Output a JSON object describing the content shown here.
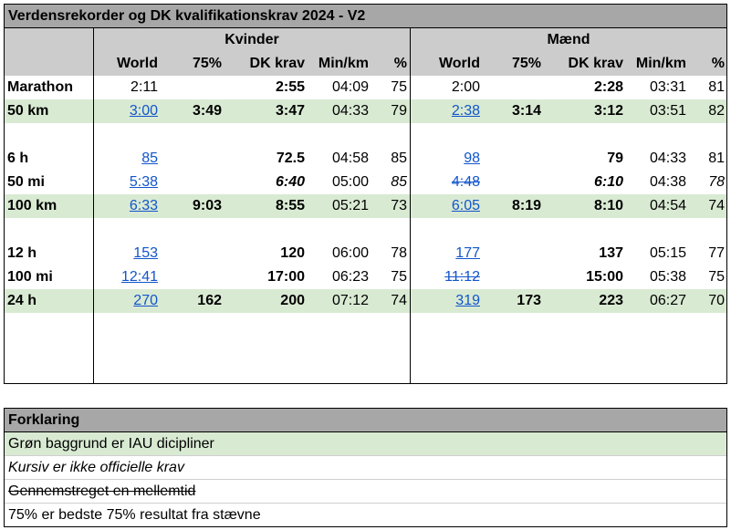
{
  "title": "Verdensrekorder og DK kvalifikationskrav 2024 - V2",
  "groups": {
    "women": "Kvinder",
    "men": "Mænd"
  },
  "columns": [
    "World",
    "75%",
    "DK krav",
    "Min/km",
    "%"
  ],
  "rows": [
    {
      "label": "Marathon",
      "green": false,
      "w": {
        "world": "2:11",
        "p75": "",
        "dk": "2:55",
        "minkm": "04:09",
        "pct": "75"
      },
      "m": {
        "world": "2:00",
        "p75": "",
        "dk": "2:28",
        "minkm": "03:31",
        "pct": "81"
      }
    },
    {
      "label": "50 km",
      "green": true,
      "w": {
        "world": "3:00",
        "p75": "3:49",
        "dk": "3:47",
        "minkm": "04:33",
        "pct": "79"
      },
      "m": {
        "world": "2:38",
        "p75": "3:14",
        "dk": "3:12",
        "minkm": "03:51",
        "pct": "82"
      }
    },
    {
      "label": "6 h",
      "green": false,
      "w": {
        "world": "85",
        "p75": "",
        "dk": "72.5",
        "minkm": "04:58",
        "pct": "85"
      },
      "m": {
        "world": "98",
        "p75": "",
        "dk": "79",
        "minkm": "04:33",
        "pct": "81"
      }
    },
    {
      "label": "50 mi",
      "green": false,
      "w": {
        "world": "5:38",
        "p75": "",
        "dk": "6:40",
        "minkm": "05:00",
        "pct": "85"
      },
      "m": {
        "world": "4:48",
        "p75": "",
        "dk": "6:10",
        "minkm": "04:38",
        "pct": "78"
      }
    },
    {
      "label": "100 km",
      "green": true,
      "w": {
        "world": "6:33",
        "p75": "9:03",
        "dk": "8:55",
        "minkm": "05:21",
        "pct": "73"
      },
      "m": {
        "world": "6:05",
        "p75": "8:19",
        "dk": "8:10",
        "minkm": "04:54",
        "pct": "74"
      }
    },
    {
      "label": "12 h",
      "green": false,
      "w": {
        "world": "153",
        "p75": "",
        "dk": "120",
        "minkm": "06:00",
        "pct": "78"
      },
      "m": {
        "world": "177",
        "p75": "",
        "dk": "137",
        "minkm": "05:15",
        "pct": "77"
      }
    },
    {
      "label": "100 mi",
      "green": false,
      "w": {
        "world": "12:41",
        "p75": "",
        "dk": "17:00",
        "minkm": "06:23",
        "pct": "75"
      },
      "m": {
        "world": "11:12",
        "p75": "",
        "dk": "15:00",
        "minkm": "05:38",
        "pct": "75"
      }
    },
    {
      "label": "24 h",
      "green": true,
      "w": {
        "world": "270",
        "p75": "162",
        "dk": "200",
        "minkm": "07:12",
        "pct": "74"
      },
      "m": {
        "world": "319",
        "p75": "173",
        "dk": "223",
        "minkm": "06:27",
        "pct": "70"
      }
    }
  ],
  "legend": {
    "title": "Forklaring",
    "items": [
      "Grøn baggrund er IAU dicipliner",
      "Kursiv er ikke officielle krav",
      "Gennemstreget en mellemtid",
      "75% er bedste 75% resultat fra stævne"
    ]
  },
  "colors": {
    "header_gray": "#a7a7a7",
    "subheader_gray": "#cccccc",
    "iau_green": "#d9ead3",
    "link_blue": "#1155cc"
  }
}
